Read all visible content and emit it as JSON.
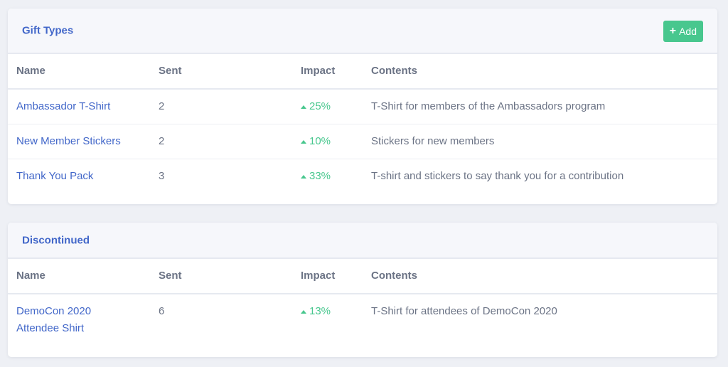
{
  "columns": {
    "name": "Name",
    "sent": "Sent",
    "impact": "Impact",
    "contents": "Contents"
  },
  "gift_types": {
    "title": "Gift Types",
    "add_label": "Add",
    "rows": [
      {
        "name": "Ambassador T-Shirt",
        "sent": "2",
        "impact": "25%",
        "contents": "T-Shirt for members of the Ambassadors program"
      },
      {
        "name": "New Member Stickers",
        "sent": "2",
        "impact": "10%",
        "contents": "Stickers for new members"
      },
      {
        "name": "Thank You Pack",
        "sent": "3",
        "impact": "33%",
        "contents": "T-shirt and stickers to say thank you for a contribution"
      }
    ]
  },
  "discontinued": {
    "title": "Discontinued",
    "rows": [
      {
        "name_line1": "DemoCon 2020",
        "name_line2": "Attendee Shirt",
        "sent": "6",
        "impact": "13%",
        "contents": "T-Shirt for attendees of DemoCon 2020"
      }
    ]
  },
  "colors": {
    "accent": "#4267c9",
    "positive": "#48c78e",
    "button": "#48c78e"
  }
}
